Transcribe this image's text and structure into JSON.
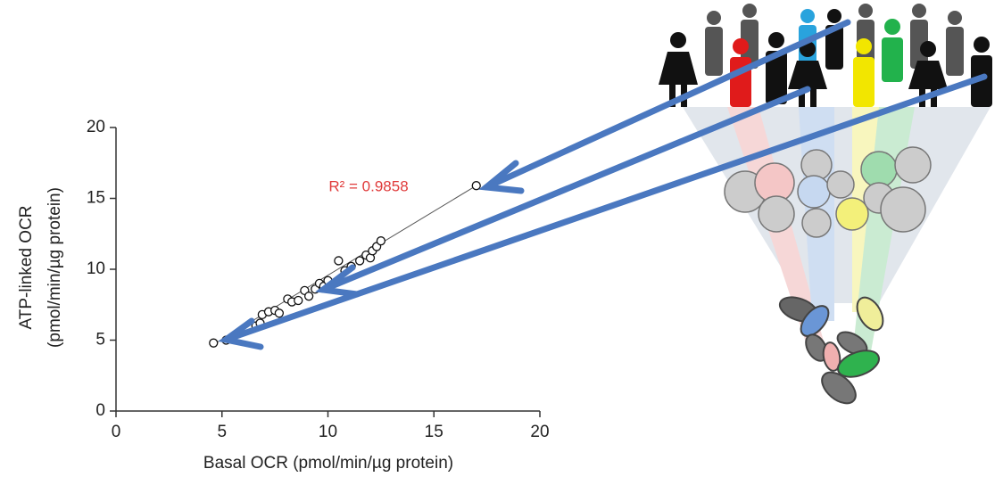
{
  "chart_data": {
    "type": "scatter",
    "annotation": "R² = 0.9858",
    "x_label": "Basal OCR (pmol/min/µg protein)",
    "y_label": [
      "ATP-linked OCR",
      "(pmol/min/µg protein)"
    ],
    "x": [
      4.6,
      5.2,
      6.6,
      6.8,
      6.9,
      7.2,
      7.5,
      7.7,
      8.1,
      8.3,
      8.6,
      8.9,
      9.1,
      9.4,
      9.6,
      9.8,
      10.0,
      10.5,
      10.8,
      11.1,
      11.5,
      11.8,
      12.0,
      12.1,
      12.3,
      12.5,
      17.0
    ],
    "y": [
      4.8,
      5.0,
      6.0,
      6.2,
      6.8,
      7.0,
      7.1,
      6.9,
      7.9,
      7.7,
      7.8,
      8.5,
      8.1,
      8.6,
      9.0,
      8.8,
      9.2,
      10.6,
      9.9,
      10.2,
      10.6,
      11.0,
      10.8,
      11.3,
      11.6,
      12.0,
      15.9
    ],
    "trendline": {
      "x": [
        4.6,
        17.0
      ],
      "y": [
        4.7,
        15.9
      ]
    },
    "xlim": [
      0,
      20
    ],
    "ylim": [
      0,
      20
    ],
    "xticks": [
      0,
      5,
      10,
      15,
      20
    ],
    "yticks": [
      0,
      5,
      10,
      15,
      20
    ]
  }
}
